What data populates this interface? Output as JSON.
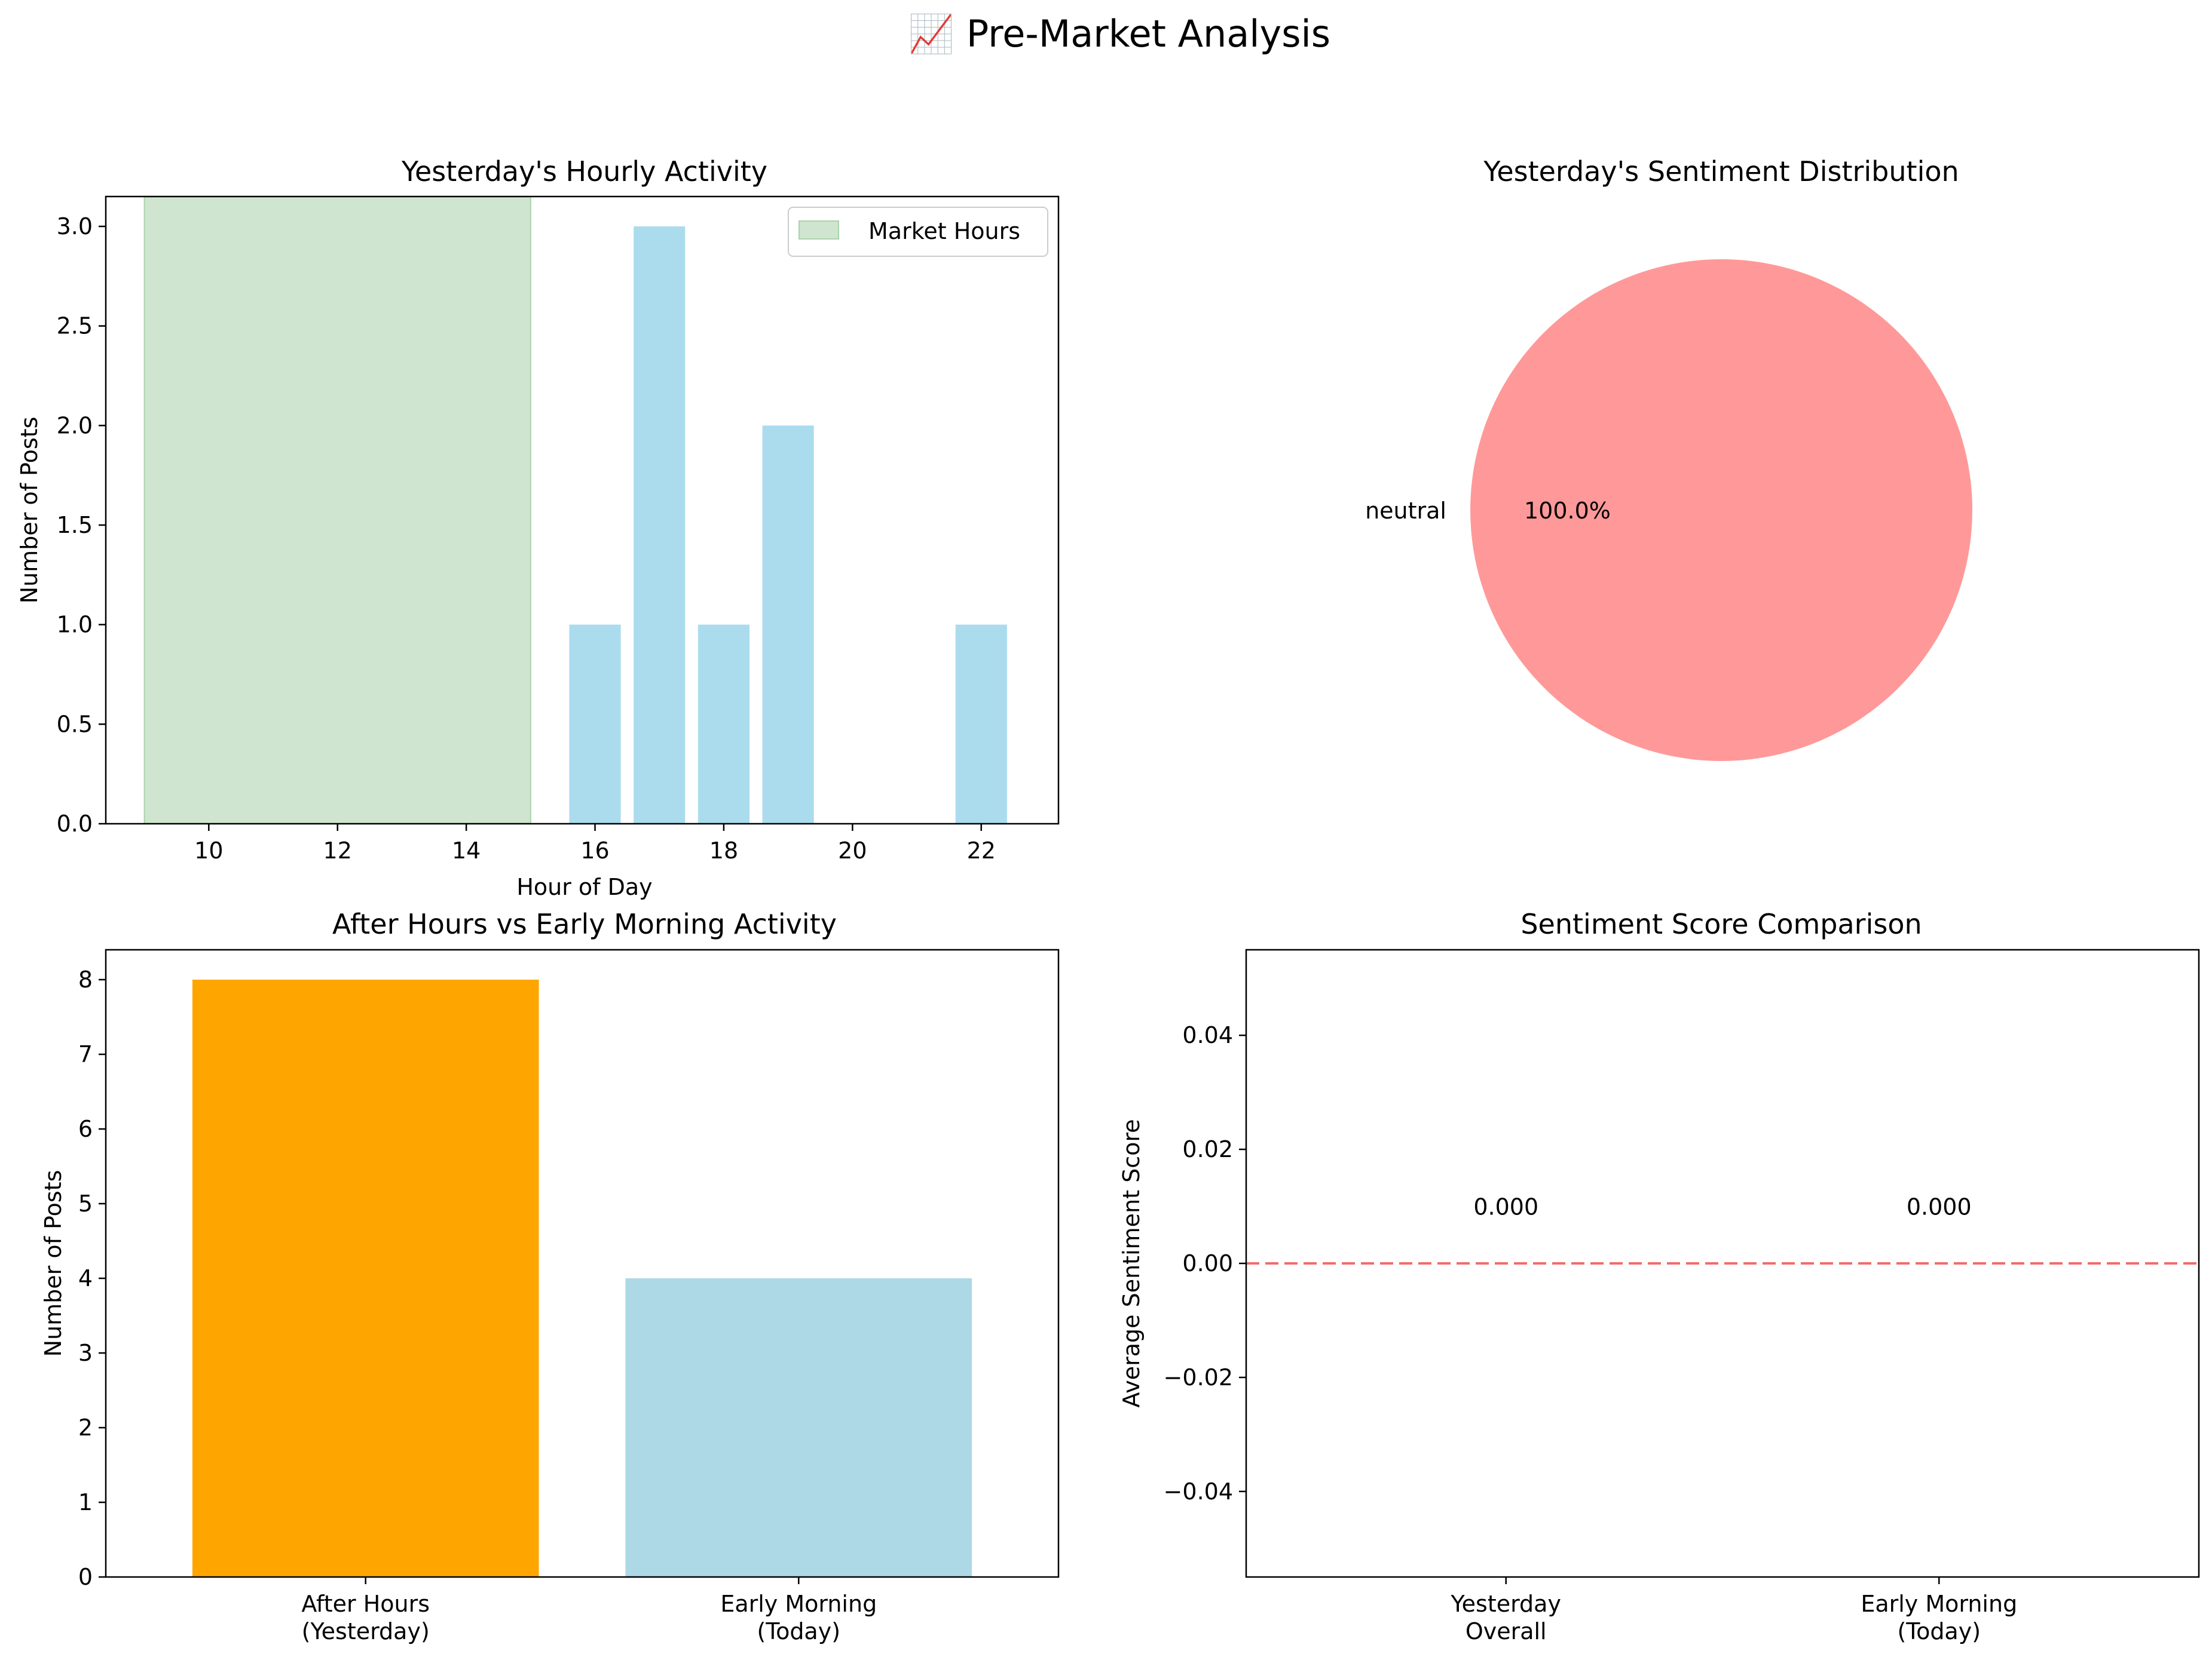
{
  "figure": {
    "suptitle": "📈 Pre-Market Analysis"
  },
  "chart_data": [
    {
      "type": "bar",
      "title": "Yesterday's Hourly Activity",
      "xlabel": "Hour of Day",
      "ylabel": "Number of Posts",
      "x": [
        16,
        17,
        18,
        19,
        22
      ],
      "values": [
        1,
        3,
        1,
        2,
        1
      ],
      "xlim": [
        8.4,
        23.2
      ],
      "ylim": [
        0,
        3.15
      ],
      "xticks": [
        10,
        12,
        14,
        16,
        18,
        20,
        22
      ],
      "yticks": [
        0.0,
        0.5,
        1.0,
        1.5,
        2.0,
        2.5,
        3.0
      ],
      "shaded_span": {
        "label": "Market Hours",
        "from": 9,
        "to": 15,
        "color": "#cfe5cf"
      },
      "bar_color": "#abdcee",
      "legend": {
        "position": "top-right",
        "entries": [
          "Market Hours"
        ]
      },
      "grid": false
    },
    {
      "type": "pie",
      "title": "Yesterday's Sentiment Distribution",
      "slices": [
        {
          "label": "neutral",
          "value": 100.0,
          "pct_label": "100.0%",
          "color": "#ff9999"
        }
      ]
    },
    {
      "type": "bar",
      "title": "After Hours vs Early Morning Activity",
      "xlabel": "",
      "ylabel": "Number of Posts",
      "categories": [
        [
          "After Hours",
          "(Yesterday)"
        ],
        [
          "Early Morning",
          "(Today)"
        ]
      ],
      "values": [
        8,
        4
      ],
      "colors": [
        "#ffa500",
        "#add8e6"
      ],
      "ylim": [
        0,
        8.4
      ],
      "yticks": [
        0,
        1,
        2,
        3,
        4,
        5,
        6,
        7,
        8
      ],
      "grid": false
    },
    {
      "type": "bar",
      "title": "Sentiment Score Comparison",
      "xlabel": "",
      "ylabel": "Average Sentiment Score",
      "categories": [
        [
          "Yesterday",
          "Overall"
        ],
        [
          "Early Morning",
          "(Today)"
        ]
      ],
      "values": [
        0.0,
        0.0
      ],
      "data_labels": [
        "0.000",
        "0.000"
      ],
      "ylim": [
        -0.055,
        0.055
      ],
      "yticks": [
        -0.04,
        -0.02,
        0.0,
        0.02,
        0.04
      ],
      "ytick_labels": [
        "−0.04",
        "−0.02",
        "0.00",
        "0.02",
        "0.04"
      ],
      "reference_line": {
        "y": 0.0,
        "style": "dashed",
        "color": "#f36b6b"
      },
      "grid": false
    }
  ]
}
